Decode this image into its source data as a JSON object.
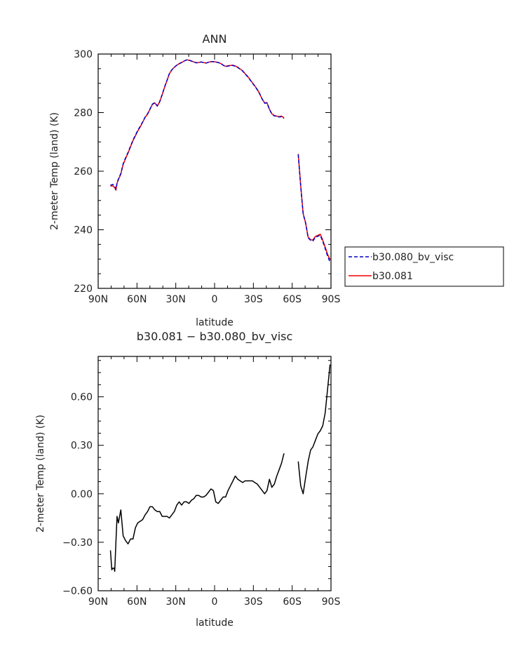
{
  "chart_data": [
    {
      "type": "line",
      "title": "ANN",
      "xlabel": "latitude",
      "ylabel": "2-meter Temp (land) (K)",
      "xlim": [
        90,
        -90
      ],
      "ylim": [
        220,
        300
      ],
      "xticks": [
        90,
        60,
        30,
        0,
        -30,
        -60,
        -90
      ],
      "xtick_labels": [
        "90N",
        "60N",
        "30N",
        "0",
        "30S",
        "60S",
        "90S"
      ],
      "yticks": [
        220,
        240,
        260,
        280,
        300
      ],
      "ytick_labels": [
        "220",
        "240",
        "260",
        "280",
        "300"
      ],
      "legend_position": "right",
      "series": [
        {
          "name": "b30.080_bv_visc",
          "color": "#0000cc",
          "dash": "dashed",
          "segments": [
            {
              "x": [
                80.5,
                78.6,
                77.2,
                76.3,
                75.4,
                74.4,
                72.5,
                70.7,
                68.8,
                66.9,
                65.0,
                63.1,
                61.2,
                59.4,
                57.5,
                55.6,
                53.7,
                51.8,
                50.0,
                48.1,
                46.2,
                44.3,
                42.4,
                40.5,
                38.7,
                36.8,
                34.9,
                33.0,
                31.1,
                29.2,
                27.4,
                25.5,
                23.6,
                21.7,
                19.8,
                17.9,
                16.0,
                14.2,
                12.3,
                10.4,
                8.5,
                6.6,
                4.7,
                2.8,
                0.9,
                -0.9,
                -2.8,
                -4.7,
                -6.6,
                -8.5,
                -10.4,
                -12.3,
                -14.2,
                -16.0,
                -17.9,
                -19.8,
                -21.7,
                -23.6,
                -25.5,
                -27.4,
                -29.2,
                -31.1,
                -33.0,
                -34.9,
                -36.8,
                -38.7,
                -40.5,
                -42.4,
                -44.3,
                -46.2,
                -48.1,
                -50.0,
                -51.8,
                -53.7
              ],
              "y": [
                255.2,
                255.5,
                254.9,
                253.8,
                256.0,
                257.3,
                259.2,
                262.5,
                264.6,
                266.4,
                268.5,
                270.6,
                272.3,
                273.9,
                275.3,
                276.8,
                278.5,
                279.6,
                281.2,
                282.9,
                283.4,
                282.3,
                283.8,
                286.2,
                288.7,
                291.0,
                293.4,
                294.6,
                295.5,
                296.2,
                296.7,
                297.1,
                297.6,
                298.0,
                297.9,
                297.6,
                297.3,
                297.0,
                297.1,
                297.3,
                297.1,
                296.9,
                297.2,
                297.4,
                297.4,
                297.3,
                297.1,
                296.8,
                296.2,
                295.7,
                295.9,
                296.0,
                296.1,
                295.8,
                295.4,
                294.8,
                294.2,
                293.2,
                292.3,
                291.2,
                290.1,
                289.0,
                287.8,
                286.4,
                284.6,
                283.2,
                283.3,
                281.1,
                279.5,
                278.9,
                278.7,
                278.5,
                278.6,
                278.0
              ]
            },
            {
              "x": [
                -64.7,
                -66.6,
                -68.5,
                -70.4,
                -72.3,
                -74.2,
                -76.0,
                -77.9,
                -79.8,
                -81.7,
                -83.6,
                -85.5,
                -87.4,
                -89.3
              ],
              "y": [
                265.7,
                255.0,
                245.5,
                242.3,
                237.3,
                236.4,
                236.2,
                237.4,
                237.8,
                238.1,
                236.1,
                233.6,
                231.0,
                229.0
              ]
            }
          ]
        },
        {
          "name": "b30.081",
          "color": "#ee0000",
          "dash": "solid",
          "segments": [
            {
              "x": [
                80.5,
                78.6,
                77.2,
                76.3,
                75.4,
                74.4,
                72.5,
                70.7,
                68.8,
                66.9,
                65.0,
                63.1,
                61.2,
                59.4,
                57.5,
                55.6,
                53.7,
                51.8,
                50.0,
                48.1,
                46.2,
                44.3,
                42.4,
                40.5,
                38.7,
                36.8,
                34.9,
                33.0,
                31.1,
                29.2,
                27.4,
                25.5,
                23.6,
                21.7,
                19.8,
                17.9,
                16.0,
                14.2,
                12.3,
                10.4,
                8.5,
                6.6,
                4.7,
                2.8,
                0.9,
                -0.9,
                -2.8,
                -4.7,
                -6.6,
                -8.5,
                -10.4,
                -12.3,
                -14.2,
                -16.0,
                -17.9,
                -19.8,
                -21.7,
                -23.6,
                -25.5,
                -27.4,
                -29.2,
                -31.1,
                -33.0,
                -34.9,
                -36.8,
                -38.7,
                -40.5,
                -42.4,
                -44.3,
                -46.2,
                -48.1,
                -50.0,
                -51.8,
                -53.7
              ],
              "y": [
                254.9,
                255.0,
                254.4,
                253.5,
                255.9,
                257.1,
                259.0,
                262.3,
                264.3,
                266.2,
                268.3,
                270.4,
                272.1,
                273.7,
                275.1,
                276.7,
                278.4,
                279.5,
                281.1,
                282.8,
                283.3,
                282.2,
                283.7,
                286.1,
                288.6,
                290.9,
                293.3,
                294.6,
                295.5,
                296.2,
                296.7,
                297.1,
                297.6,
                298.0,
                297.9,
                297.6,
                297.3,
                297.0,
                297.1,
                297.3,
                297.1,
                296.9,
                297.2,
                297.4,
                297.4,
                297.3,
                297.1,
                296.8,
                296.2,
                295.8,
                296.0,
                296.1,
                296.2,
                295.9,
                295.5,
                294.9,
                294.3,
                293.3,
                292.4,
                291.3,
                290.2,
                289.1,
                287.9,
                286.4,
                284.6,
                283.3,
                283.4,
                281.2,
                279.6,
                279.0,
                278.8,
                278.6,
                278.8,
                278.2
              ]
            },
            {
              "x": [
                -64.7,
                -66.6,
                -68.5,
                -70.4,
                -72.3,
                -74.2,
                -76.0,
                -77.9,
                -79.8,
                -81.7,
                -83.6,
                -85.5,
                -87.4,
                -89.3
              ],
              "y": [
                265.9,
                255.1,
                245.5,
                242.4,
                237.5,
                236.6,
                236.5,
                237.7,
                238.1,
                238.5,
                236.5,
                234.1,
                231.6,
                229.8
              ]
            }
          ]
        }
      ]
    },
    {
      "type": "line",
      "title": "b30.081 − b30.080_bv_visc",
      "xlabel": "latitude",
      "ylabel": "2-meter Temp (land) (K)",
      "xlim": [
        90,
        -90
      ],
      "ylim": [
        -0.6,
        0.85
      ],
      "xticks": [
        90,
        60,
        30,
        0,
        -30,
        -60,
        -90
      ],
      "xtick_labels": [
        "90N",
        "60N",
        "30N",
        "0",
        "30S",
        "60S",
        "90S"
      ],
      "yticks": [
        -0.6,
        -0.3,
        0.0,
        0.3,
        0.6
      ],
      "ytick_labels": [
        "−0.60",
        "−0.30",
        "0.00",
        "0.30",
        "0.60"
      ],
      "series": [
        {
          "color": "#000000",
          "dash": "solid",
          "segments": [
            {
              "x": [
                80.5,
                79.5,
                78.6,
                77.7,
                77.2,
                76.3,
                75.4,
                74.4,
                72.5,
                70.7,
                68.8,
                66.9,
                65.0,
                63.1,
                61.2,
                59.4,
                57.5,
                55.6,
                53.7,
                51.8,
                50.0,
                48.1,
                46.2,
                44.3,
                42.4,
                40.5,
                38.7,
                36.8,
                34.9,
                33.0,
                31.1,
                29.2,
                27.4,
                25.5,
                23.6,
                21.7,
                19.8,
                17.9,
                16.0,
                14.2,
                12.3,
                10.4,
                8.5,
                6.6,
                4.7,
                2.8,
                0.9,
                -0.9,
                -2.8,
                -4.7,
                -6.6,
                -8.5,
                -10.4,
                -12.3,
                -14.2,
                -16.0,
                -17.9,
                -19.8,
                -21.7,
                -23.6,
                -25.5,
                -27.4,
                -29.2,
                -31.1,
                -33.0,
                -34.9,
                -36.8,
                -38.7,
                -40.5,
                -42.4,
                -44.3,
                -46.2,
                -48.1,
                -50.0,
                -51.8,
                -53.7
              ],
              "y": [
                -0.35,
                -0.47,
                -0.46,
                -0.46,
                -0.48,
                -0.3,
                -0.14,
                -0.18,
                -0.1,
                -0.26,
                -0.29,
                -0.31,
                -0.28,
                -0.28,
                -0.21,
                -0.18,
                -0.17,
                -0.16,
                -0.13,
                -0.11,
                -0.08,
                -0.08,
                -0.1,
                -0.11,
                -0.11,
                -0.14,
                -0.14,
                -0.14,
                -0.15,
                -0.13,
                -0.11,
                -0.07,
                -0.05,
                -0.07,
                -0.05,
                -0.05,
                -0.06,
                -0.04,
                -0.03,
                -0.01,
                -0.01,
                -0.02,
                -0.02,
                -0.01,
                0.01,
                0.03,
                0.02,
                -0.05,
                -0.06,
                -0.04,
                -0.02,
                -0.02,
                0.02,
                0.05,
                0.08,
                0.11,
                0.09,
                0.08,
                0.07,
                0.08,
                0.08,
                0.08,
                0.08,
                0.07,
                0.06,
                0.04,
                0.02,
                0.0,
                0.02,
                0.09,
                0.04,
                0.06,
                0.11,
                0.15,
                0.19,
                0.25
              ]
            },
            {
              "x": [
                -64.7,
                -66.6,
                -68.5,
                -70.4,
                -72.3,
                -74.2,
                -76.0,
                -77.9,
                -79.8,
                -81.7,
                -83.6,
                -85.5,
                -87.4,
                -89.3
              ],
              "y": [
                0.2,
                0.05,
                0.0,
                0.1,
                0.2,
                0.27,
                0.29,
                0.33,
                0.37,
                0.39,
                0.42,
                0.5,
                0.65,
                0.8
              ]
            }
          ]
        }
      ]
    }
  ]
}
